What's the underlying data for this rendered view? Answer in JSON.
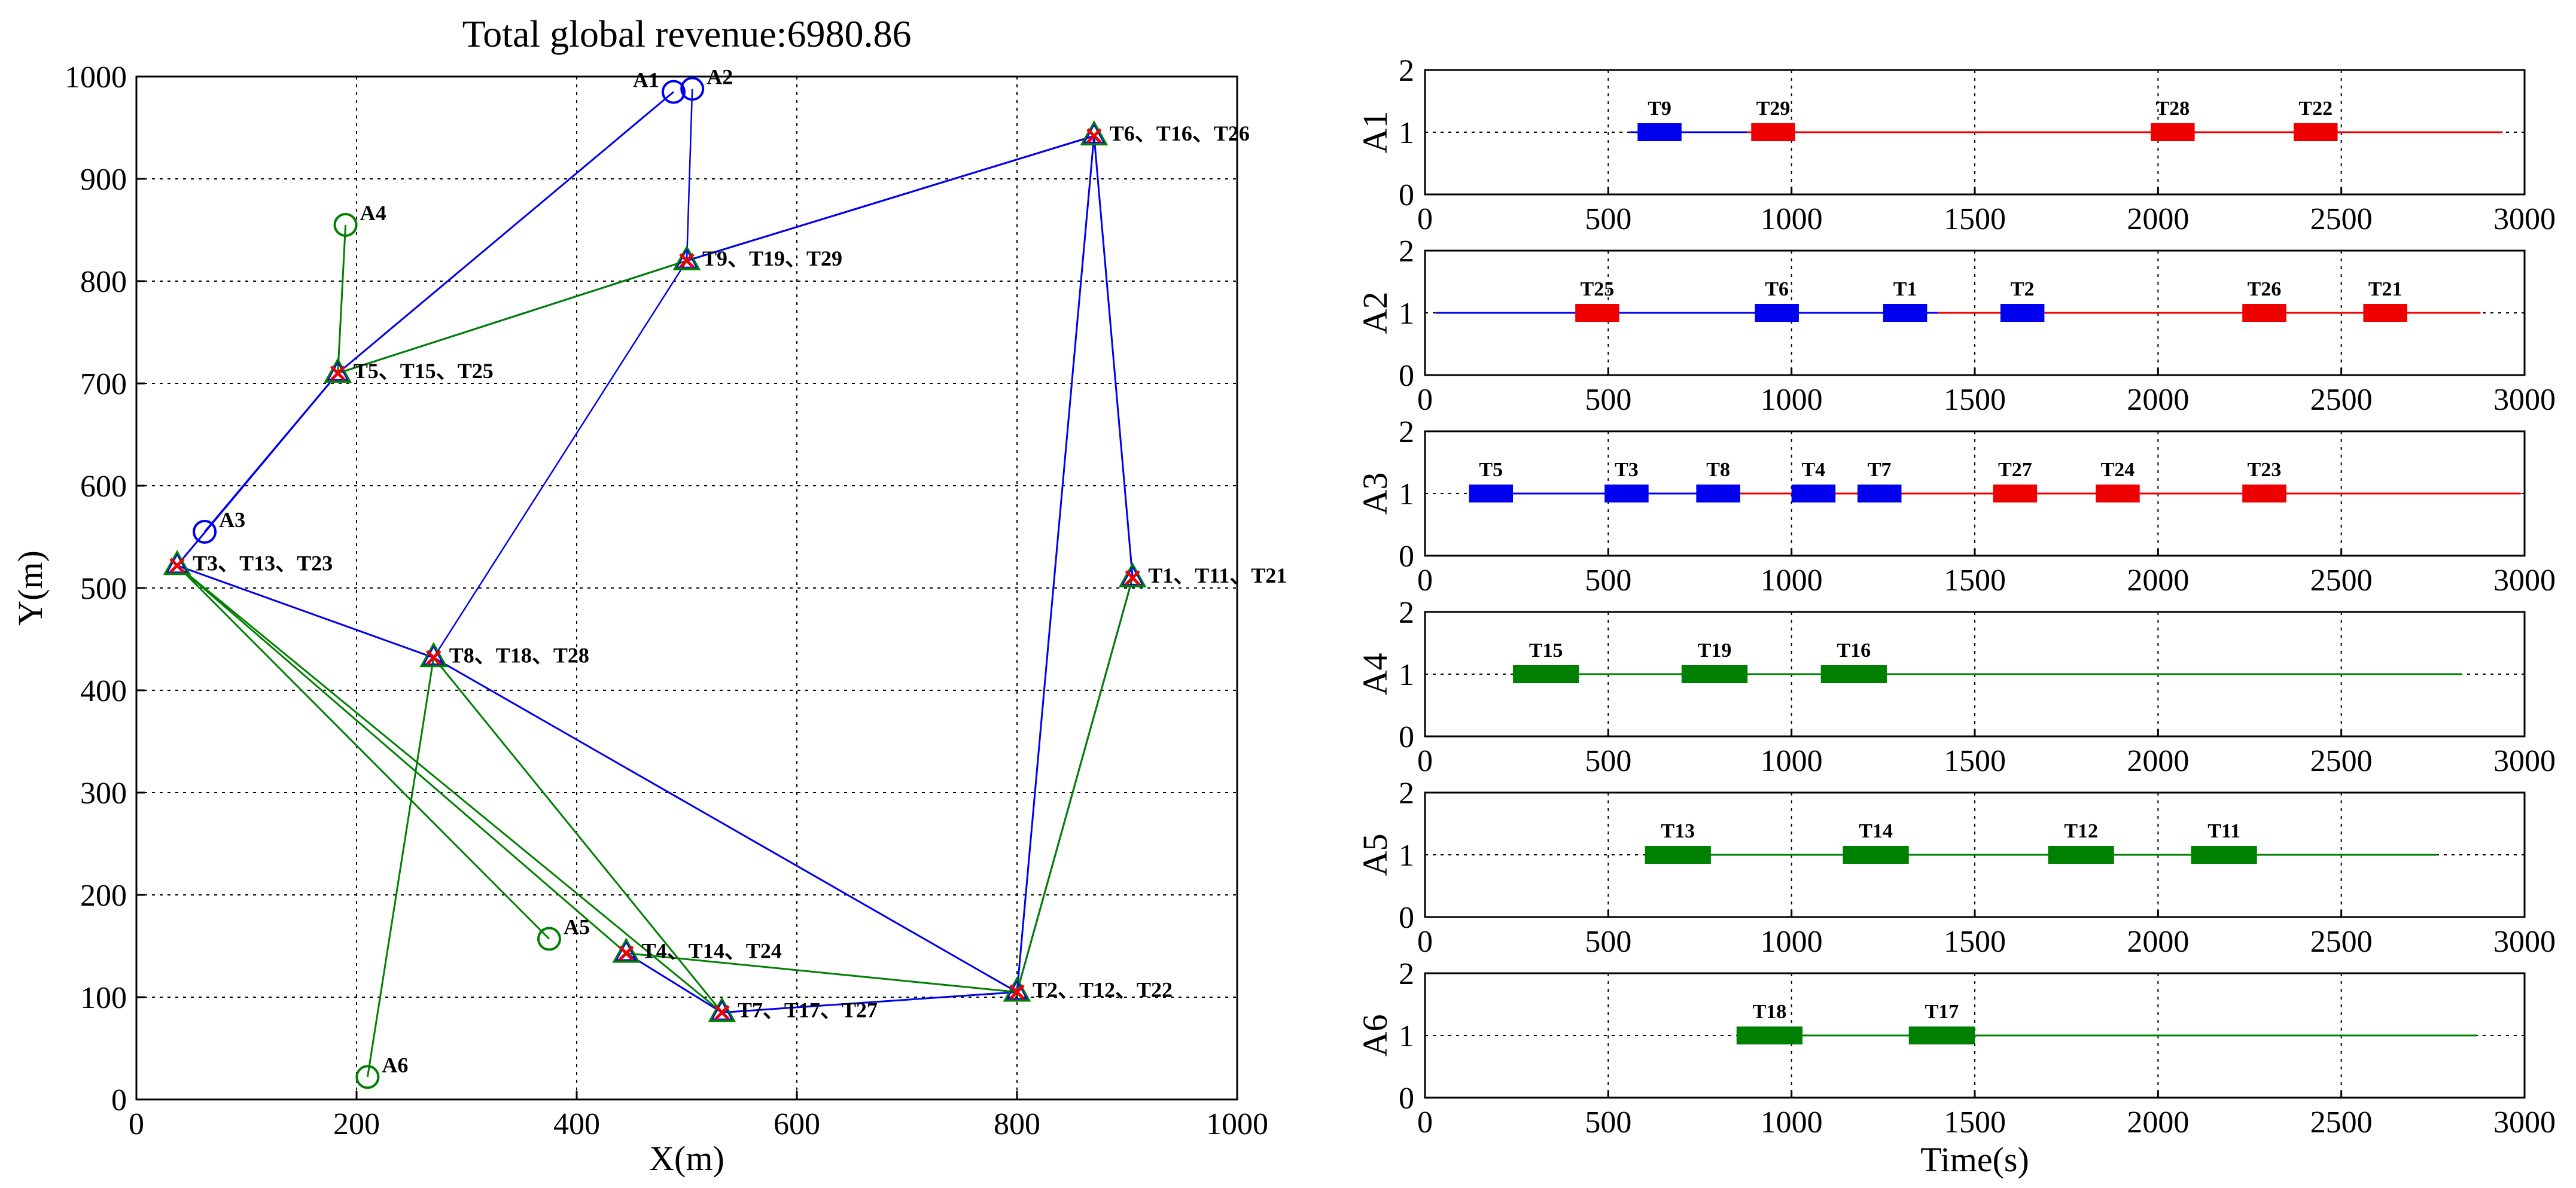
{
  "chart_data": [
    {
      "type": "scatter",
      "title": "Total global revenue:6980.86",
      "xlabel": "X(m)",
      "ylabel": "Y(m)",
      "xlim": [
        0,
        1000
      ],
      "ylim": [
        0,
        1000
      ],
      "xticks": [
        "0",
        "200",
        "400",
        "600",
        "800",
        "1000"
      ],
      "yticks": [
        "0",
        "100",
        "200",
        "300",
        "400",
        "500",
        "600",
        "700",
        "800",
        "900",
        "1000"
      ],
      "colors": {
        "blue": "#0000ee",
        "green": "#008000",
        "red": "#ee0000"
      },
      "agents": [
        {
          "label": "A1",
          "x": 488,
          "y": 985,
          "color": "blue"
        },
        {
          "label": "A2",
          "x": 505,
          "y": 988,
          "color": "blue"
        },
        {
          "label": "A3",
          "x": 62,
          "y": 555,
          "color": "blue"
        },
        {
          "label": "A4",
          "x": 190,
          "y": 855,
          "color": "green"
        },
        {
          "label": "A5",
          "x": 375,
          "y": 157,
          "color": "green"
        },
        {
          "label": "A6",
          "x": 210,
          "y": 22,
          "color": "green"
        }
      ],
      "targets": [
        {
          "label": "T6、T16、T26",
          "x": 870,
          "y": 942
        },
        {
          "label": "T9、T19、T29",
          "x": 500,
          "y": 820
        },
        {
          "label": "T5、T15、T25",
          "x": 183,
          "y": 710
        },
        {
          "label": "T3、T13、T23",
          "x": 37,
          "y": 522
        },
        {
          "label": "T1、T11、T21",
          "x": 905,
          "y": 510
        },
        {
          "label": "T8、T18、T28",
          "x": 270,
          "y": 432
        },
        {
          "label": "T4、T14、T24",
          "x": 445,
          "y": 143
        },
        {
          "label": "T7、T17、T27",
          "x": 532,
          "y": 85
        },
        {
          "label": "T2、T12、T22",
          "x": 800,
          "y": 105
        }
      ],
      "routes": [
        {
          "color": "blue",
          "width": 3,
          "points": [
            [
              488,
              985
            ],
            [
              183,
              710
            ],
            [
              37,
              522
            ],
            [
              270,
              432
            ],
            [
              800,
              105
            ],
            [
              870,
              942
            ],
            [
              500,
              820
            ]
          ]
        },
        {
          "color": "blue",
          "width": 2.5,
          "points": [
            [
              505,
              988
            ],
            [
              500,
              820
            ],
            [
              270,
              432
            ],
            [
              532,
              85
            ]
          ]
        },
        {
          "color": "blue",
          "width": 3,
          "points": [
            [
              62,
              555
            ],
            [
              183,
              710
            ],
            [
              500,
              820
            ],
            [
              870,
              942
            ],
            [
              905,
              510
            ],
            [
              800,
              105
            ],
            [
              532,
              85
            ],
            [
              445,
              143
            ]
          ]
        },
        {
          "color": "green",
          "width": 3,
          "points": [
            [
              190,
              855
            ],
            [
              183,
              710
            ],
            [
              500,
              820
            ]
          ]
        },
        {
          "color": "green",
          "width": 3,
          "points": [
            [
              375,
              157
            ],
            [
              37,
              522
            ],
            [
              445,
              143
            ],
            [
              800,
              105
            ],
            [
              905,
              510
            ]
          ]
        },
        {
          "color": "green",
          "width": 3,
          "points": [
            [
              210,
              22
            ],
            [
              270,
              432
            ],
            [
              532,
              85
            ],
            [
              37,
              522
            ]
          ]
        }
      ]
    },
    {
      "type": "gantt",
      "xlabel": "Time(s)",
      "xlim": [
        0,
        3000
      ],
      "ylim": [
        0,
        2
      ],
      "xticks": [
        "0",
        "500",
        "1000",
        "1500",
        "2000",
        "2500",
        "3000"
      ],
      "yticks": [
        "0",
        "1",
        "2"
      ],
      "rows": [
        {
          "agent": "A1",
          "line_start": 560,
          "line_end": 2940,
          "segments": [
            {
              "from": 560,
              "to": 880,
              "color": "blue"
            },
            {
              "from": 880,
              "to": 2940,
              "color": "red"
            }
          ],
          "tasks": [
            {
              "label": "T9",
              "start": 580,
              "end": 700,
              "color": "blue"
            },
            {
              "label": "T29",
              "start": 890,
              "end": 1010,
              "color": "red"
            },
            {
              "label": "T28",
              "start": 1980,
              "end": 2100,
              "color": "red"
            },
            {
              "label": "T22",
              "start": 2370,
              "end": 2490,
              "color": "red"
            }
          ]
        },
        {
          "agent": "A2",
          "line_start": 30,
          "line_end": 2880,
          "segments": [
            {
              "from": 30,
              "to": 1400,
              "color": "blue"
            },
            {
              "from": 1400,
              "to": 2880,
              "color": "red"
            }
          ],
          "tasks": [
            {
              "label": "T25",
              "start": 410,
              "end": 530,
              "color": "red"
            },
            {
              "label": "T6",
              "start": 900,
              "end": 1020,
              "color": "blue"
            },
            {
              "label": "T1",
              "start": 1250,
              "end": 1370,
              "color": "blue"
            },
            {
              "label": "T2",
              "start": 1570,
              "end": 1690,
              "color": "blue"
            },
            {
              "label": "T26",
              "start": 2230,
              "end": 2350,
              "color": "red"
            },
            {
              "label": "T21",
              "start": 2560,
              "end": 2680,
              "color": "red"
            }
          ]
        },
        {
          "agent": "A3",
          "line_start": 120,
          "line_end": 2990,
          "segments": [
            {
              "from": 120,
              "to": 830,
              "color": "blue"
            },
            {
              "from": 830,
              "to": 2990,
              "color": "red"
            }
          ],
          "tasks": [
            {
              "label": "T5",
              "start": 120,
              "end": 240,
              "color": "blue"
            },
            {
              "label": "T3",
              "start": 490,
              "end": 610,
              "color": "blue"
            },
            {
              "label": "T8",
              "start": 740,
              "end": 860,
              "color": "blue"
            },
            {
              "label": "T4",
              "start": 1000,
              "end": 1120,
              "color": "blue"
            },
            {
              "label": "T7",
              "start": 1180,
              "end": 1300,
              "color": "blue"
            },
            {
              "label": "T27",
              "start": 1550,
              "end": 1670,
              "color": "red"
            },
            {
              "label": "T24",
              "start": 1830,
              "end": 1950,
              "color": "red"
            },
            {
              "label": "T23",
              "start": 2230,
              "end": 2350,
              "color": "red"
            }
          ]
        },
        {
          "agent": "A4",
          "line_start": 240,
          "line_end": 2830,
          "segments": [
            {
              "from": 240,
              "to": 2830,
              "color": "green"
            }
          ],
          "tasks": [
            {
              "label": "T15",
              "start": 240,
              "end": 420,
              "color": "green"
            },
            {
              "label": "T19",
              "start": 700,
              "end": 880,
              "color": "green"
            },
            {
              "label": "T16",
              "start": 1080,
              "end": 1260,
              "color": "green"
            }
          ]
        },
        {
          "agent": "A5",
          "line_start": 600,
          "line_end": 2760,
          "segments": [
            {
              "from": 600,
              "to": 2760,
              "color": "green"
            }
          ],
          "tasks": [
            {
              "label": "T13",
              "start": 600,
              "end": 780,
              "color": "green"
            },
            {
              "label": "T14",
              "start": 1140,
              "end": 1320,
              "color": "green"
            },
            {
              "label": "T12",
              "start": 1700,
              "end": 1880,
              "color": "green"
            },
            {
              "label": "T11",
              "start": 2090,
              "end": 2270,
              "color": "green"
            }
          ]
        },
        {
          "agent": "A6",
          "line_start": 850,
          "line_end": 2870,
          "segments": [
            {
              "from": 850,
              "to": 2870,
              "color": "green"
            }
          ],
          "tasks": [
            {
              "label": "T18",
              "start": 850,
              "end": 1030,
              "color": "green"
            },
            {
              "label": "T17",
              "start": 1320,
              "end": 1500,
              "color": "green"
            }
          ]
        }
      ]
    }
  ]
}
